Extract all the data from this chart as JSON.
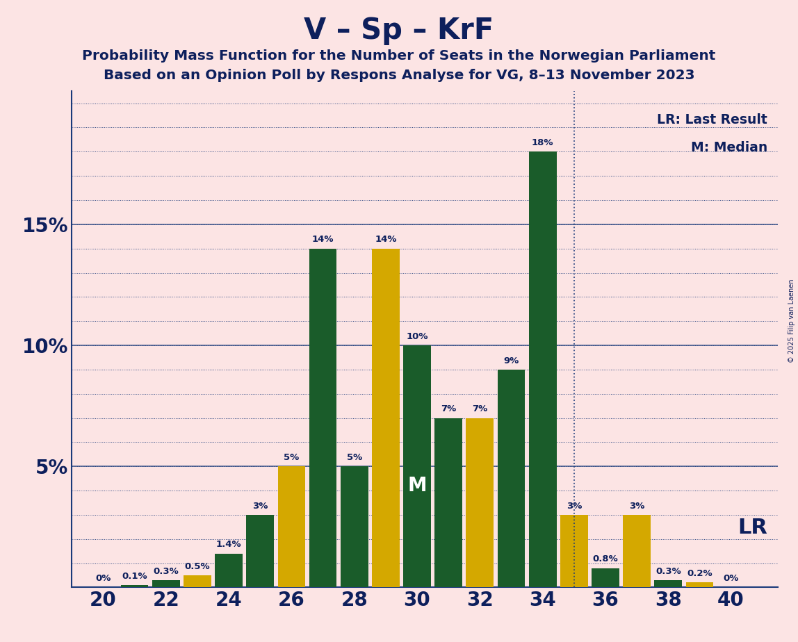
{
  "title": "V – Sp – KrF",
  "subtitle1": "Probability Mass Function for the Number of Seats in the Norwegian Parliament",
  "subtitle2": "Based on an Opinion Poll by Respons Analyse for VG, 8–13 November 2023",
  "copyright": "© 2025 Filip van Laenen",
  "seats": [
    20,
    21,
    22,
    23,
    24,
    25,
    26,
    27,
    28,
    29,
    30,
    31,
    32,
    33,
    34,
    35,
    36,
    37,
    38,
    39,
    40
  ],
  "probabilities": [
    0.0,
    0.1,
    0.3,
    0.5,
    1.4,
    3.0,
    5.0,
    14.0,
    5.0,
    14.0,
    10.0,
    7.0,
    7.0,
    9.0,
    18.0,
    3.0,
    0.8,
    3.0,
    0.3,
    0.2,
    0.0
  ],
  "bar_colors": [
    "#1a5c2a",
    "#1a5c2a",
    "#1a5c2a",
    "#d4a800",
    "#1a5c2a",
    "#1a5c2a",
    "#d4a800",
    "#1a5c2a",
    "#1a5c2a",
    "#d4a800",
    "#1a5c2a",
    "#1a5c2a",
    "#d4a800",
    "#1a5c2a",
    "#1a5c2a",
    "#d4a800",
    "#1a5c2a",
    "#d4a800",
    "#1a5c2a",
    "#d4a800",
    "#1a5c2a"
  ],
  "median": 30,
  "last_result": 35,
  "background_color": "#fce4e4",
  "grid_color": "#1a3a7a",
  "axis_color": "#1a3a7a",
  "title_color": "#0d1f5c",
  "label_color": "#0d1f5c",
  "yticks": [
    0,
    5,
    10,
    15,
    20
  ],
  "solid_lines": [
    5,
    10,
    15
  ],
  "xticks": [
    20,
    22,
    24,
    26,
    28,
    30,
    32,
    34,
    36,
    38,
    40
  ],
  "ylim": [
    0,
    20.5
  ],
  "xlim": [
    19.0,
    41.5
  ],
  "lr_label": "LR: Last Result",
  "m_label": "M: Median",
  "lr_short": "LR",
  "m_short": "M",
  "bar_width": 0.88
}
